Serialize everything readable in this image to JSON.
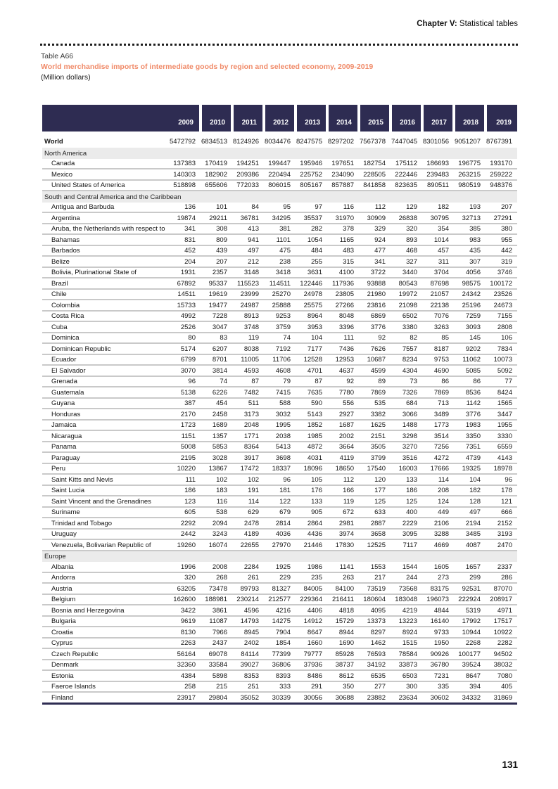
{
  "page": {
    "chapter_label": "Chapter V:",
    "chapter_title": " Statistical tables",
    "table_number": "Table A66",
    "table_title": "World merchandise imports of intermediate goods by region and selected economy, 2009-2019",
    "table_unit": "(Million dollars)",
    "page_number": "131"
  },
  "colors": {
    "header_navy": "#2e2c52",
    "title_orange": "#f08a68",
    "section_gray": "#ebebeb",
    "row_border_gray": "#c9c9c9"
  },
  "table": {
    "years": [
      "2009",
      "2010",
      "2011",
      "2012",
      "2013",
      "2014",
      "2015",
      "2016",
      "2017",
      "2018",
      "2019"
    ],
    "rows": [
      {
        "type": "total",
        "label": "World",
        "values": [
          5472792,
          6834513,
          8124926,
          8034476,
          8247575,
          8297202,
          7567378,
          7447045,
          8301056,
          9051207,
          8767391
        ]
      },
      {
        "type": "section",
        "label": "North America"
      },
      {
        "type": "data",
        "label": "Canada",
        "values": [
          137383,
          170419,
          194251,
          199447,
          195946,
          197651,
          182754,
          175112,
          186693,
          196775,
          193170
        ]
      },
      {
        "type": "data",
        "label": "Mexico",
        "values": [
          140303,
          182902,
          209386,
          220494,
          225752,
          234090,
          228505,
          222446,
          239483,
          263215,
          259222
        ]
      },
      {
        "type": "data",
        "label": "United States of America",
        "values": [
          518898,
          655606,
          772033,
          806015,
          805167,
          857887,
          841858,
          823635,
          890511,
          980519,
          948376
        ]
      },
      {
        "type": "section",
        "label": "South and Central America and the Caribbean"
      },
      {
        "type": "data",
        "label": "Antigua and Barbuda",
        "values": [
          136,
          101,
          84,
          95,
          97,
          116,
          112,
          129,
          182,
          193,
          207
        ]
      },
      {
        "type": "data",
        "label": "Argentina",
        "values": [
          19874,
          29211,
          36781,
          34295,
          35537,
          31970,
          30909,
          26838,
          30795,
          32713,
          27291
        ]
      },
      {
        "type": "data",
        "label": "Aruba, the Netherlands with respect to",
        "values": [
          341,
          308,
          413,
          381,
          282,
          378,
          329,
          320,
          354,
          385,
          380
        ]
      },
      {
        "type": "data",
        "label": "Bahamas",
        "values": [
          831,
          809,
          941,
          1101,
          1054,
          1165,
          924,
          893,
          1014,
          983,
          955
        ]
      },
      {
        "type": "data",
        "label": "Barbados",
        "values": [
          452,
          439,
          497,
          475,
          484,
          483,
          477,
          468,
          457,
          435,
          442
        ]
      },
      {
        "type": "data",
        "label": "Belize",
        "values": [
          204,
          207,
          212,
          238,
          255,
          315,
          341,
          327,
          311,
          307,
          319
        ]
      },
      {
        "type": "data",
        "label": "Bolivia, Plurinational State of",
        "values": [
          1931,
          2357,
          3148,
          3418,
          3631,
          4100,
          3722,
          3440,
          3704,
          4056,
          3746
        ]
      },
      {
        "type": "data",
        "label": "Brazil",
        "values": [
          67892,
          95337,
          115523,
          114511,
          122446,
          117936,
          93888,
          80543,
          87698,
          98575,
          100172
        ]
      },
      {
        "type": "data",
        "label": "Chile",
        "values": [
          14511,
          19619,
          23999,
          25270,
          24978,
          23805,
          21980,
          19972,
          21057,
          24342,
          23526
        ]
      },
      {
        "type": "data",
        "label": "Colombia",
        "values": [
          15733,
          19477,
          24987,
          25888,
          25575,
          27266,
          23816,
          21098,
          22138,
          25196,
          24673
        ]
      },
      {
        "type": "data",
        "label": "Costa Rica",
        "values": [
          4992,
          7228,
          8913,
          9253,
          8964,
          8048,
          6869,
          6502,
          7076,
          7259,
          7155
        ]
      },
      {
        "type": "data",
        "label": "Cuba",
        "values": [
          2526,
          3047,
          3748,
          3759,
          3953,
          3396,
          3776,
          3380,
          3263,
          3093,
          2808
        ]
      },
      {
        "type": "data",
        "label": "Dominica",
        "values": [
          80,
          83,
          119,
          74,
          104,
          111,
          92,
          82,
          85,
          145,
          106
        ]
      },
      {
        "type": "data",
        "label": "Dominican Republic",
        "values": [
          5174,
          6207,
          8038,
          7192,
          7177,
          7436,
          7626,
          7557,
          8187,
          9202,
          7834
        ]
      },
      {
        "type": "data",
        "label": "Ecuador",
        "values": [
          6799,
          8701,
          11005,
          11706,
          12528,
          12953,
          10687,
          8234,
          9753,
          11062,
          10073
        ]
      },
      {
        "type": "data",
        "label": "El Salvador",
        "values": [
          3070,
          3814,
          4593,
          4608,
          4701,
          4637,
          4599,
          4304,
          4690,
          5085,
          5092
        ]
      },
      {
        "type": "data",
        "label": "Grenada",
        "values": [
          96,
          74,
          87,
          79,
          87,
          92,
          89,
          73,
          86,
          86,
          77
        ]
      },
      {
        "type": "data",
        "label": "Guatemala",
        "values": [
          5138,
          6226,
          7482,
          7415,
          7635,
          7780,
          7869,
          7326,
          7869,
          8536,
          8424
        ]
      },
      {
        "type": "data",
        "label": "Guyana",
        "values": [
          387,
          454,
          511,
          588,
          590,
          556,
          535,
          684,
          713,
          1142,
          1565
        ]
      },
      {
        "type": "data",
        "label": "Honduras",
        "values": [
          2170,
          2458,
          3173,
          3032,
          5143,
          2927,
          3382,
          3066,
          3489,
          3776,
          3447
        ]
      },
      {
        "type": "data",
        "label": "Jamaica",
        "values": [
          1723,
          1689,
          2048,
          1995,
          1852,
          1687,
          1625,
          1488,
          1773,
          1983,
          1955
        ]
      },
      {
        "type": "data",
        "label": "Nicaragua",
        "values": [
          1151,
          1357,
          1771,
          2038,
          1985,
          2002,
          2151,
          3298,
          3514,
          3350,
          3330
        ]
      },
      {
        "type": "data",
        "label": "Panama",
        "values": [
          5008,
          5853,
          8364,
          5413,
          4872,
          3664,
          3505,
          3270,
          7256,
          7351,
          6559
        ]
      },
      {
        "type": "data",
        "label": "Paraguay",
        "values": [
          2195,
          3028,
          3917,
          3698,
          4031,
          4119,
          3799,
          3516,
          4272,
          4739,
          4143
        ]
      },
      {
        "type": "data",
        "label": "Peru",
        "values": [
          10220,
          13867,
          17472,
          18337,
          18096,
          18650,
          17540,
          16003,
          17666,
          19325,
          18978
        ]
      },
      {
        "type": "data",
        "label": "Saint Kitts and Nevis",
        "values": [
          111,
          102,
          102,
          96,
          105,
          112,
          120,
          133,
          114,
          104,
          96
        ]
      },
      {
        "type": "data",
        "label": "Saint Lucia",
        "values": [
          186,
          183,
          191,
          181,
          176,
          166,
          177,
          186,
          208,
          182,
          178
        ]
      },
      {
        "type": "data",
        "label": "Saint Vincent and the Grenadines",
        "values": [
          123,
          116,
          114,
          122,
          133,
          119,
          125,
          125,
          124,
          128,
          121
        ]
      },
      {
        "type": "data",
        "label": "Suriname",
        "values": [
          605,
          538,
          629,
          679,
          905,
          672,
          633,
          400,
          449,
          497,
          666
        ]
      },
      {
        "type": "data",
        "label": "Trinidad and Tobago",
        "values": [
          2292,
          2094,
          2478,
          2814,
          2864,
          2981,
          2887,
          2229,
          2106,
          2194,
          2152
        ]
      },
      {
        "type": "data",
        "label": "Uruguay",
        "values": [
          2442,
          3243,
          4189,
          4036,
          4436,
          3974,
          3658,
          3095,
          3288,
          3485,
          3193
        ]
      },
      {
        "type": "data",
        "label": "Venezuela, Bolivarian Republic of",
        "values": [
          19260,
          16074,
          22655,
          27970,
          21446,
          17830,
          12525,
          7117,
          4669,
          4087,
          2470
        ]
      },
      {
        "type": "section",
        "label": "Europe"
      },
      {
        "type": "data",
        "label": "Albania",
        "values": [
          1996,
          2008,
          2284,
          1925,
          1986,
          1141,
          1553,
          1544,
          1605,
          1657,
          2337
        ]
      },
      {
        "type": "data",
        "label": "Andorra",
        "values": [
          320,
          268,
          261,
          229,
          235,
          263,
          217,
          244,
          273,
          299,
          286
        ]
      },
      {
        "type": "data",
        "label": "Austria",
        "values": [
          63205,
          73478,
          89793,
          81327,
          84005,
          84100,
          73519,
          73568,
          83175,
          92531,
          87070
        ]
      },
      {
        "type": "data",
        "label": "Belgium",
        "values": [
          162600,
          188981,
          230214,
          212577,
          229364,
          216411,
          180604,
          183048,
          196073,
          222924,
          208917
        ]
      },
      {
        "type": "data",
        "label": "Bosnia and Herzegovina",
        "values": [
          3422,
          3861,
          4596,
          4216,
          4406,
          4818,
          4095,
          4219,
          4844,
          5319,
          4971
        ]
      },
      {
        "type": "data",
        "label": "Bulgaria",
        "values": [
          9619,
          11087,
          14793,
          14275,
          14912,
          15729,
          13373,
          13223,
          16140,
          17992,
          17517
        ]
      },
      {
        "type": "data",
        "label": "Croatia",
        "values": [
          8130,
          7966,
          8945,
          7904,
          8647,
          8944,
          8297,
          8924,
          9733,
          10944,
          10922
        ]
      },
      {
        "type": "data",
        "label": "Cyprus",
        "values": [
          2263,
          2437,
          2402,
          1854,
          1660,
          1690,
          1462,
          1515,
          1950,
          2268,
          2282
        ]
      },
      {
        "type": "data",
        "label": "Czech Republic",
        "values": [
          56164,
          69078,
          84114,
          77399,
          79777,
          85928,
          76593,
          78584,
          90926,
          100177,
          94502
        ]
      },
      {
        "type": "data",
        "label": "Denmark",
        "values": [
          32360,
          33584,
          39027,
          36806,
          37936,
          38737,
          34192,
          33873,
          36780,
          39524,
          38032
        ]
      },
      {
        "type": "data",
        "label": "Estonia",
        "values": [
          4384,
          5898,
          8353,
          8393,
          8486,
          8612,
          6535,
          6503,
          7231,
          8647,
          7080
        ]
      },
      {
        "type": "data",
        "label": "Faeroe Islands",
        "values": [
          258,
          215,
          251,
          333,
          291,
          350,
          277,
          300,
          335,
          394,
          405
        ]
      },
      {
        "type": "data",
        "label": "Finland",
        "values": [
          23917,
          29804,
          35052,
          30339,
          30056,
          30688,
          23882,
          23634,
          30602,
          34332,
          31869
        ]
      }
    ]
  }
}
